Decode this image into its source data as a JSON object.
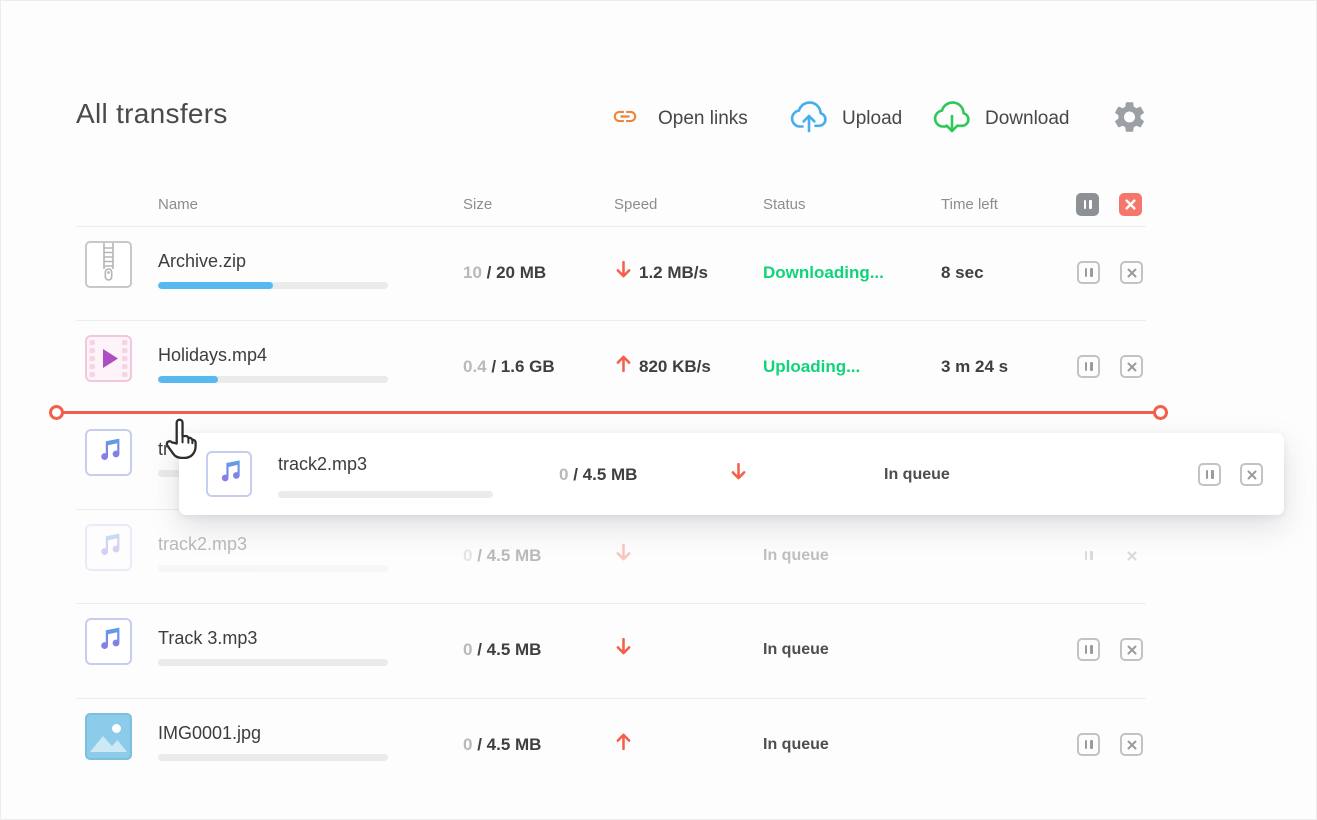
{
  "title": "All transfers",
  "toolbar": {
    "open_links_label": "Open links",
    "upload_label": "Upload",
    "download_label": "Download"
  },
  "table": {
    "headers": {
      "name": "Name",
      "size": "Size",
      "speed": "Speed",
      "status": "Status",
      "time_left": "Time left"
    }
  },
  "rows": [
    {
      "icon": "zip-file",
      "name": "Archive.zip",
      "progress": 50,
      "size_done": "10",
      "size_rest": " / 20 MB",
      "direction": "down",
      "speed": "1.2 MB/s",
      "status": "Downloading...",
      "status_kind": "active",
      "time_left": "8 sec"
    },
    {
      "icon": "video-file",
      "name": "Holidays.mp4",
      "progress": 26,
      "size_done": "0.4",
      "size_rest": " / 1.6 GB",
      "direction": "up",
      "speed": "820 KB/s",
      "status": "Uploading...",
      "status_kind": "active",
      "time_left": "3 m 24 s"
    },
    {
      "icon": "music-file",
      "name_visible": "tr",
      "progress": 0
    },
    {
      "icon": "music-file",
      "name": "track2.mp3",
      "progress": 0,
      "size_done": "0",
      "size_rest": " / 4.5 MB",
      "direction": "down",
      "status": "In queue",
      "status_kind": "queued",
      "ghost": true
    },
    {
      "icon": "music-file",
      "name": "Track 3.mp3",
      "progress": 0,
      "size_done": "0",
      "size_rest": " / 4.5 MB",
      "direction": "down",
      "status": "In queue",
      "status_kind": "queued"
    },
    {
      "icon": "image-file",
      "name": "IMG0001.jpg",
      "progress": 0,
      "size_done": "0",
      "size_rest": " / 4.5 MB",
      "direction": "up",
      "status": "In queue",
      "status_kind": "queued"
    }
  ],
  "drag_card": {
    "icon": "music-file",
    "name": "track2.mp3",
    "progress": 0,
    "size_done": "0",
    "size_rest": " / 4.5 MB",
    "direction": "down",
    "status": "In queue"
  },
  "colors": {
    "accent_red": "#f45f4b",
    "accent_red_light": "#f5776c",
    "progress_blue": "#57b9f0",
    "status_green": "#0fd47b",
    "link_orange": "#ef833a",
    "upload_blue": "#46aeef",
    "download_green": "#2cc959"
  }
}
